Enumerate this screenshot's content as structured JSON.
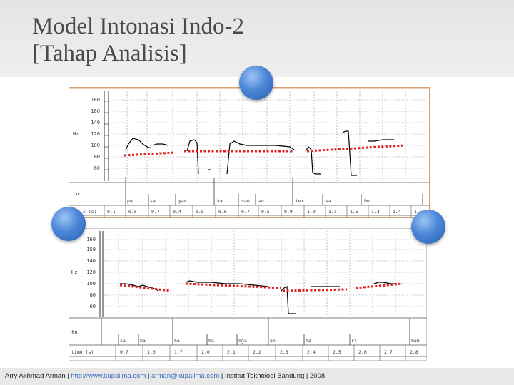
{
  "slide": {
    "title_line1": "Model Intonasi Indo-2",
    "title_line2": "[Tahap Analisis]"
  },
  "panel_top": {
    "unit_hz": "Hz",
    "unit_tier": "tn",
    "time_label": "s (s)",
    "y_ticks": [
      "180",
      "160",
      "140",
      "120",
      "100",
      "80",
      "60"
    ],
    "syllables": [
      "pa",
      "sa",
      "yan",
      "ka",
      "sau",
      "an",
      "ter",
      "sa",
      "but"
    ],
    "times": [
      "0.1",
      "0.5",
      "0.7",
      "0.4",
      "0.5",
      "0.6",
      "0.7",
      "0.5",
      "0.9",
      "1.0",
      "1.1",
      "1.5",
      "1.3",
      "1.4",
      "1.5"
    ]
  },
  "panel_bottom": {
    "unit_hz": "Hz",
    "unit_tier": "tn",
    "time_label": "time (s)",
    "y_ticks": [
      "160",
      "150",
      "140",
      "120",
      "100",
      "80",
      "60"
    ],
    "syllables": [
      "sa",
      "ba",
      "ha",
      "ha",
      "nga",
      "an",
      "ha",
      "ri",
      "bah"
    ],
    "times": [
      "0.7",
      "1.0",
      "1.7",
      "2.0",
      "2.1",
      "2.2",
      "2.3",
      "2.4",
      "2.5",
      "2.6",
      "2.7",
      "2.8"
    ]
  },
  "footer": {
    "author": "Arry Akhmad Arman |",
    "url": "http://www.kupalima.com",
    "sep1": "|",
    "email": "arman@kupalima.com",
    "rest": "| Institut Teknologi Bandung | 2008"
  },
  "colors": {
    "pitch_line": "#000000",
    "trend_line": "#e02020",
    "grid": "#9a9a9a",
    "orb": "#3f78cf",
    "panel_border": "#d9a070"
  }
}
